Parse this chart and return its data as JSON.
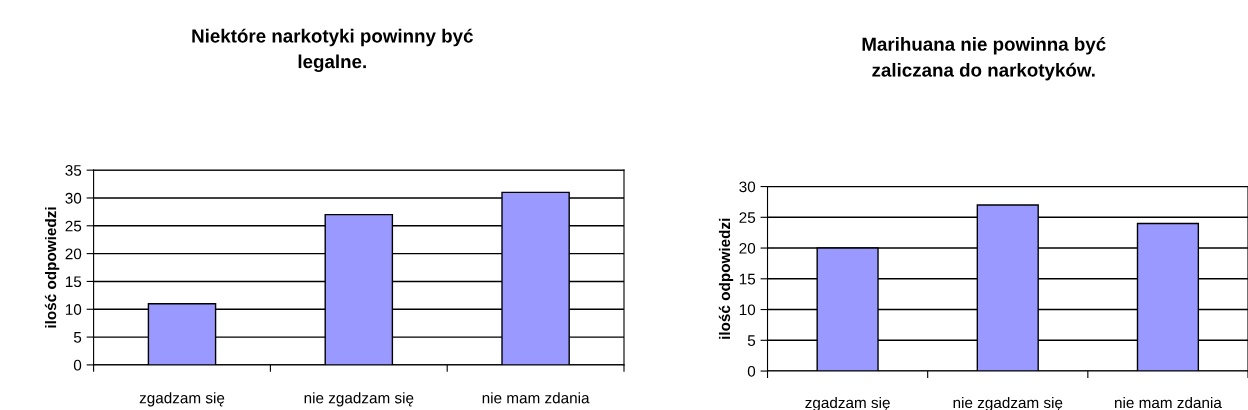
{
  "chart_data": [
    {
      "type": "bar",
      "title": "Niektóre narkotyki powinny być\nlegalne.",
      "ylabel": "ilość odpowiedzi",
      "categories": [
        "zgadzam się",
        "nie zgadzam się",
        "nie mam zdania"
      ],
      "values": [
        11,
        27,
        31
      ],
      "color": "#9999ff",
      "ylim": [
        0,
        35
      ],
      "yticks": [
        0,
        5,
        10,
        15,
        20,
        25,
        30,
        35
      ],
      "grid": "y",
      "legend": false
    },
    {
      "type": "bar",
      "title": "Marihuana nie powinna być\nzaliczana do narkotyków.",
      "ylabel": "ilość odpowiedzi",
      "categories": [
        "zgadzam się",
        "nie zgadzam się",
        "nie mam zdania"
      ],
      "values": [
        20,
        27,
        24
      ],
      "color": "#9999ff",
      "ylim": [
        0,
        30
      ],
      "yticks": [
        0,
        5,
        10,
        15,
        20,
        25,
        30
      ],
      "grid": "y",
      "legend": false
    }
  ]
}
